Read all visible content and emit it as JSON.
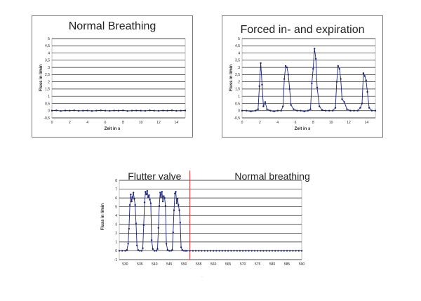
{
  "chart_data": [
    {
      "type": "line",
      "title": "Normal Breathing",
      "xlabel": "Zeit in s",
      "ylabel": "Fluss in l/min",
      "xlim": [
        0,
        15
      ],
      "ylim": [
        -0.5,
        5
      ],
      "x_ticks": [
        "0",
        "2",
        "4",
        "6",
        "8",
        "10",
        "12",
        "14"
      ],
      "y_ticks": [
        "-0,5",
        "0",
        "0,5",
        "1",
        "1,5",
        "2",
        "2,5",
        "3",
        "3,5",
        "4",
        "4,5",
        "5"
      ],
      "grid": true,
      "series": [
        {
          "color": "#1a237e",
          "x": [
            0,
            0.5,
            1,
            1.5,
            2,
            2.5,
            3,
            3.5,
            4,
            4.5,
            5,
            5.5,
            6,
            6.5,
            7,
            7.5,
            8,
            8.5,
            9,
            9.5,
            10,
            10.5,
            11,
            11.5,
            12,
            12.5,
            13,
            13.5,
            14,
            14.5,
            15
          ],
          "y": [
            0,
            0.02,
            -0.02,
            0.01,
            0,
            0.02,
            -0.01,
            0,
            0.01,
            -0.02,
            0,
            0.02,
            0,
            -0.01,
            0.01,
            0,
            0.02,
            -0.02,
            0,
            0.01,
            0,
            -0.01,
            0.02,
            0,
            -0.01,
            0.01,
            0,
            0.02,
            -0.01,
            0,
            0.01
          ]
        }
      ]
    },
    {
      "type": "line",
      "title": "Forced in- and expiration",
      "xlabel": "Zeit in s",
      "ylabel": "Fluss in l/min",
      "xlim": [
        0,
        15
      ],
      "ylim": [
        -0.5,
        5
      ],
      "x_ticks": [
        "0",
        "2",
        "4",
        "6",
        "8",
        "10",
        "12",
        "14"
      ],
      "y_ticks": [
        "-0,5",
        "0",
        "0,5",
        "1",
        "1,5",
        "2",
        "2,5",
        "3",
        "3,5",
        "4",
        "4,5",
        "5"
      ],
      "grid": true,
      "series": [
        {
          "color": "#1a237e",
          "x": [
            0,
            0.5,
            1,
            1.5,
            1.8,
            1.95,
            2.1,
            2.25,
            2.4,
            2.6,
            2.8,
            3.2,
            3.6,
            4,
            4.4,
            4.6,
            4.75,
            4.9,
            5.05,
            5.2,
            5.35,
            5.5,
            5.8,
            6.2,
            6.6,
            7,
            7.4,
            7.7,
            7.85,
            8,
            8.15,
            8.3,
            8.45,
            8.7,
            9,
            9.4,
            9.8,
            10.2,
            10.5,
            10.65,
            10.8,
            10.95,
            11.1,
            11.25,
            11.5,
            11.8,
            12.2,
            12.6,
            13,
            13.3,
            13.5,
            13.65,
            13.8,
            13.95,
            14.1,
            14.3,
            14.6,
            15
          ],
          "y": [
            0,
            0,
            -0.05,
            0,
            0.1,
            1.7,
            3.3,
            1.8,
            0.3,
            0.6,
            0.1,
            0,
            -0.05,
            0,
            0,
            0.3,
            2.2,
            3.1,
            3,
            2.5,
            1.5,
            0.4,
            0.1,
            0,
            0,
            -0.05,
            0,
            0.1,
            1.9,
            2.9,
            4.3,
            3.6,
            1.6,
            0.3,
            0.05,
            0,
            0,
            0,
            0.2,
            2,
            3.1,
            2.9,
            2.2,
            0.8,
            0.6,
            0.1,
            0,
            0,
            0,
            0.2,
            0.5,
            2.6,
            2.4,
            2.1,
            1.3,
            0.2,
            0,
            0
          ]
        }
      ]
    },
    {
      "type": "line",
      "xlabel": "",
      "ylabel": "Fluss in l/min",
      "ylim": [
        -1,
        8
      ],
      "xlim": [
        528,
        590
      ],
      "x_ticks": [
        "530",
        "535",
        "540",
        "545",
        "550",
        "555",
        "560",
        "565",
        "570",
        "575",
        "580",
        "585",
        "590"
      ],
      "y_ticks": [
        "-1",
        "0",
        "1",
        "2",
        "3",
        "4",
        "5",
        "6",
        "7",
        "8"
      ],
      "grid": true,
      "annotations": [
        {
          "text": "Flutter valve",
          "x": 540
        },
        {
          "text": "Normal breathing",
          "x": 580
        }
      ],
      "divider_x": 552,
      "divider_color": "#d32f2f",
      "series": [
        {
          "color": "#1a237e",
          "x": [
            528,
            529,
            530,
            530.6,
            531,
            531.3,
            531.6,
            531.9,
            532.2,
            532.5,
            532.8,
            533.1,
            533.4,
            533.7,
            534,
            534.4,
            535,
            535.6,
            536,
            536.3,
            536.6,
            536.9,
            537.2,
            537.5,
            537.8,
            538.1,
            538.4,
            538.7,
            539,
            539.4,
            540,
            540.6,
            541,
            541.3,
            541.6,
            541.9,
            542.2,
            542.5,
            542.8,
            543.1,
            543.4,
            543.7,
            544,
            544.4,
            545,
            545.6,
            546,
            546.3,
            546.6,
            546.9,
            547.2,
            547.5,
            547.8,
            548.1,
            548.4,
            548.7,
            549,
            549.4,
            550,
            550.6,
            551,
            552,
            553,
            554,
            555,
            556,
            557,
            558,
            559,
            560,
            561,
            562,
            563,
            564,
            565,
            566,
            567,
            568,
            569,
            570,
            571,
            572,
            573,
            574,
            575,
            576,
            577,
            578,
            579,
            580,
            581,
            582,
            583,
            584,
            585,
            586,
            587,
            588,
            589,
            590
          ],
          "y": [
            0,
            0,
            0,
            0.1,
            0.8,
            2.5,
            5.2,
            6.4,
            5.6,
            6.1,
            6.6,
            5.9,
            5.2,
            3.1,
            0.6,
            0.1,
            0,
            0,
            0.3,
            2.9,
            5.5,
            6.7,
            6.4,
            6.8,
            6.1,
            6.3,
            5.8,
            5.4,
            1.2,
            0.2,
            0,
            0,
            0.2,
            2.6,
            5.1,
            6.6,
            6.1,
            6.7,
            5.6,
            6.2,
            6.0,
            5.1,
            0.8,
            0.1,
            0,
            0,
            0.1,
            2.1,
            4.6,
            6.5,
            6.7,
            5.4,
            5.9,
            5.2,
            4.6,
            3.2,
            0.4,
            0.1,
            0,
            0,
            0,
            0,
            0,
            0,
            0,
            0,
            0,
            0,
            0,
            0,
            0,
            0,
            0,
            0,
            0,
            0,
            0,
            0,
            0,
            0,
            0,
            0,
            0,
            0,
            0,
            0,
            0,
            0,
            0,
            0,
            0,
            0,
            0,
            0,
            0,
            0,
            0,
            0,
            0,
            0
          ]
        }
      ]
    }
  ]
}
